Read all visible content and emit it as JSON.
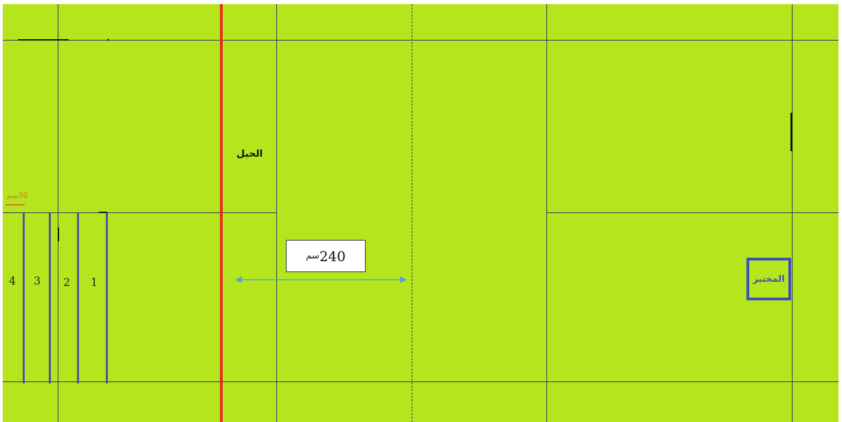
{
  "labels": {
    "rope": "الحبل",
    "lab": "المختبر",
    "scale": "30سم",
    "distance_value": "240",
    "distance_unit": "سم"
  },
  "lanes": [
    "4",
    "3",
    "2",
    "1"
  ],
  "colors": {
    "field": "#b5e61d",
    "grid": "#2f3a5f",
    "rope": "#e8291b",
    "lanes": "#4a55a8",
    "arrow": "#5aa0d8",
    "lab_box": "#3f4fb5",
    "scale": "#e07020"
  }
}
